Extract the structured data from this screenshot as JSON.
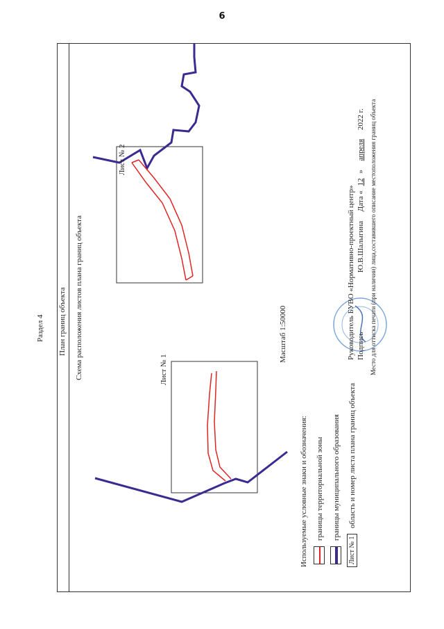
{
  "page_number": "6",
  "section": "Раздел 4",
  "plan_title": "План границ объекта",
  "scheme_title": "Схема расположения листов плана границ объекта",
  "sheet1_label": "Лист № 1",
  "sheet2_label": "Лист № 2",
  "scale": "Масштаб 1:50000",
  "legend": {
    "title": "Используемые условные знаки и обозначения:",
    "items": [
      {
        "label": "границы территориальной зоны",
        "color": "#e02424"
      },
      {
        "label": "границы муниципального образования",
        "color": "#3b2a8f"
      },
      {
        "label": "область и номер листа плана границ объекта",
        "tag": "Лист № 1"
      }
    ]
  },
  "signature": {
    "head": "Руководитель БУВО «Нормативно-проектный центр»",
    "sign_label": "Подпись",
    "name": "Ю.В.Шалыгина",
    "date_label": "Дата «",
    "day": "12",
    "quote_close": "»",
    "month": "апреля",
    "year": "2022 г.",
    "stamp_note": "Место для оттиска печати (при наличии) лица,составившего описание местоположения границ объекта"
  },
  "colors": {
    "zone": "#e02424",
    "municipal": "#3b2a8f",
    "stamp": "#7aa6d8"
  }
}
